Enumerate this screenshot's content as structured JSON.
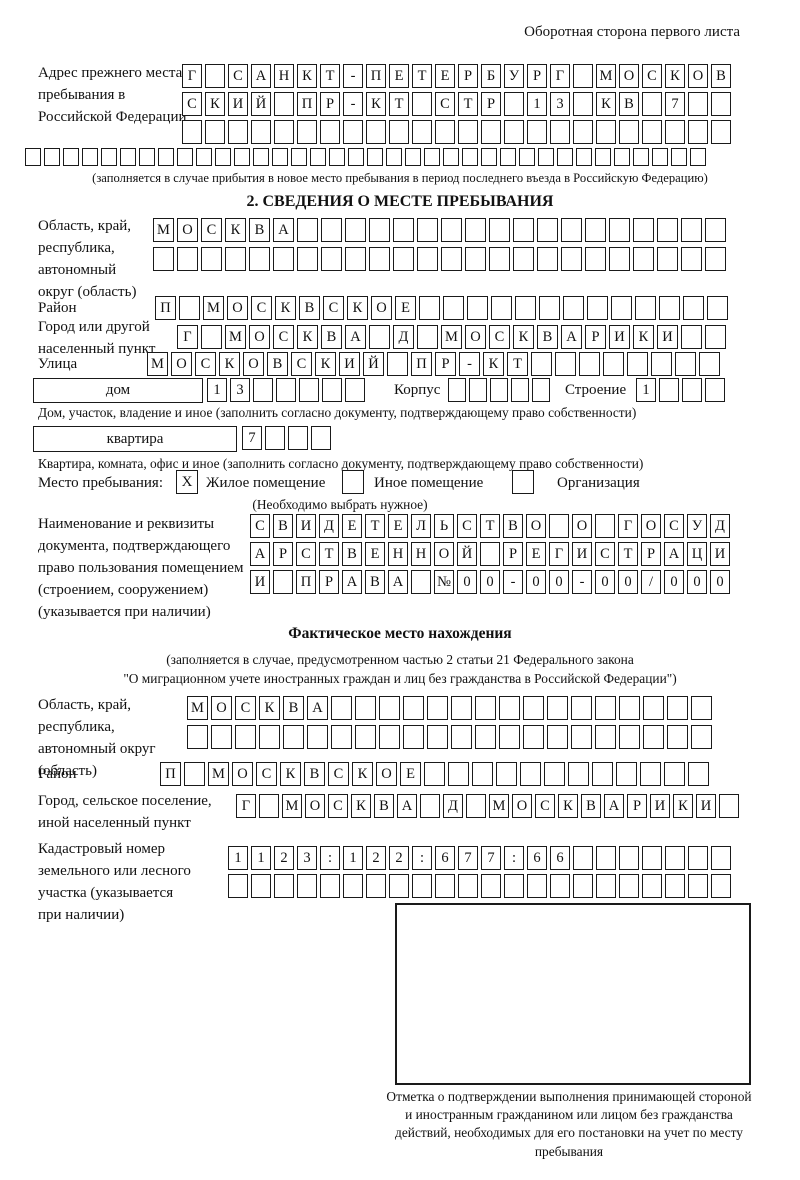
{
  "corner_note": "Оборотная сторона первого листа",
  "prev_address": {
    "label": "Адрес прежнего места пребывания в Российской Федерации",
    "row1": "Г САНКТ-ПЕТЕРБУРГ МОСКОВ",
    "row2": "СКИЙ ПР-КТ СТР 13 КВ 7",
    "row3": "",
    "row4": "",
    "note": "(заполняется в случае прибытия в новое место пребывания в период последнего въезда в Российскую Федерацию)"
  },
  "section2": {
    "title": "2. СВЕДЕНИЯ О МЕСТЕ ПРЕБЫВАНИЯ",
    "region": {
      "label": "Область, край, республика, автономный округ (область)",
      "row1": "МОСКВА",
      "row2": ""
    },
    "district": {
      "label": "Район",
      "value": "П МОСКВСКОЕ"
    },
    "city": {
      "label": "Город или другой населенный пункт",
      "value": "Г МОСКВА Д МОСКВАРИКИ"
    },
    "street": {
      "label": "Улица",
      "value": "МОСКОВСКИЙ ПР-КТ"
    },
    "house": {
      "box_label": "дом",
      "value": "13",
      "korpus_label": "Корпус",
      "korpus_value": "",
      "stroenie_label": "Строение",
      "stroenie_value": "1",
      "note": "Дом, участок, владение и иное (заполнить согласно документу, подтверждающему право собственности)"
    },
    "apartment": {
      "box_label": "квартира",
      "value": "7",
      "note": "Квартира, комната, офис и иное (заполнить согласно документу, подтверждающему право собственности)"
    },
    "stay_type_label": "Место пребывания:",
    "stay_options": [
      {
        "label": "Жилое помещение",
        "mark": "X"
      },
      {
        "label": "Иное помещение",
        "mark": ""
      },
      {
        "label": "Организация",
        "mark": ""
      }
    ],
    "stay_note": "(Необходимо выбрать нужное)",
    "document": {
      "label": "Наименование и реквизиты документа, подтверждающего право пользования помещением (строением, сооружением) (указывается при наличии)",
      "row1": "СВИДЕТЕЛЬСТВО О ГОСУД",
      "row2": "АРСТВЕННОЙ РЕГИСТРАЦИ",
      "row3": "И ПРАВА №00-00-00/000"
    }
  },
  "factual": {
    "title": "Фактическое место нахождения",
    "note1": "(заполняется в случае, предусмотренном частью 2 статьи 21 Федерального закона",
    "note2": "\"О миграционном учете иностранных граждан и лиц без гражданства в Российской Федерации\")",
    "region": {
      "label": "Область, край, республика, автономный округ (область)",
      "row1": "МОСКВА",
      "row2": ""
    },
    "district": {
      "label": "Район",
      "value": "П МОСКВСКОЕ"
    },
    "city": {
      "label": "Город, сельское поселение, иной населенный пункт",
      "value": "Г МОСКВА Д МОСКВАРИКИ"
    },
    "cadastre": {
      "label": "Кадастровый номер земельного или лесного участка (указывается при наличии)",
      "row1": "1123:122:677:66",
      "row2": ""
    }
  },
  "stamp_note": "Отметка о подтверждении выполнения принимающей стороной и иностранным гражданином или лицом без гражданства действий, необходимых для его постановки на учет по месту пребывания"
}
